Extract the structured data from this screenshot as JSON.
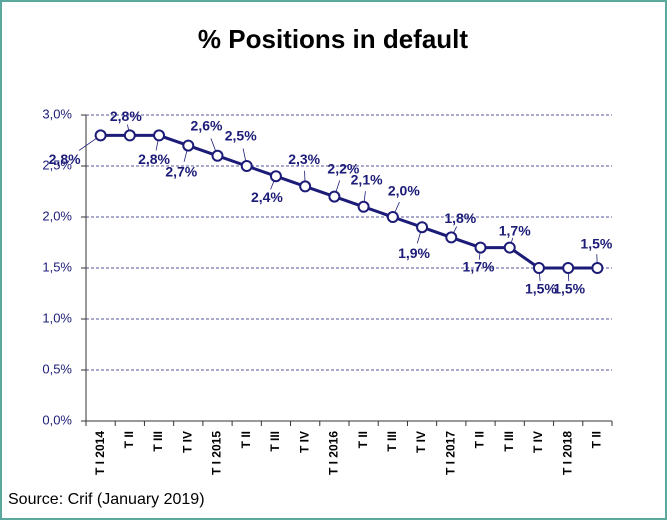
{
  "chart_data": {
    "type": "line",
    "title": "% Positions in default",
    "categories": [
      "T I 2014",
      "T II",
      "T III",
      "T IV",
      "T I 2015",
      "T II",
      "T III",
      "T IV",
      "T I 2016",
      "T II",
      "T III",
      "T IV",
      "T I 2017",
      "T II",
      "T III",
      "T IV",
      "T I 2018",
      "T II"
    ],
    "values": [
      2.8,
      2.8,
      2.8,
      2.7,
      2.6,
      2.5,
      2.4,
      2.3,
      2.2,
      2.1,
      2.0,
      1.9,
      1.8,
      1.7,
      1.7,
      1.5,
      1.5,
      1.5
    ],
    "value_labels": [
      "2,8%",
      "2,8%",
      "2,8%",
      "2,7%",
      "2,6%",
      "2,5%",
      "2,4%",
      "2,3%",
      "2,2%",
      "2,1%",
      "2,0%",
      "1,9%",
      "1,8%",
      "1,7%",
      "1,7%",
      "1,5%",
      "1,5%",
      "1,5%"
    ],
    "color": "#1c1c78",
    "ylim": [
      0,
      3
    ],
    "yticks": [
      {
        "value": 0,
        "label": "0,0%"
      },
      {
        "value": 0.5,
        "label": "0,5%"
      },
      {
        "value": 1,
        "label": "1,0%"
      },
      {
        "value": 1.5,
        "label": "1,5%"
      },
      {
        "value": 2,
        "label": "2,0%"
      },
      {
        "value": 2.5,
        "label": "2,5%"
      },
      {
        "value": 3,
        "label": "3,0%"
      }
    ],
    "grid": true,
    "source": "Source: Crif (January 2019)"
  }
}
